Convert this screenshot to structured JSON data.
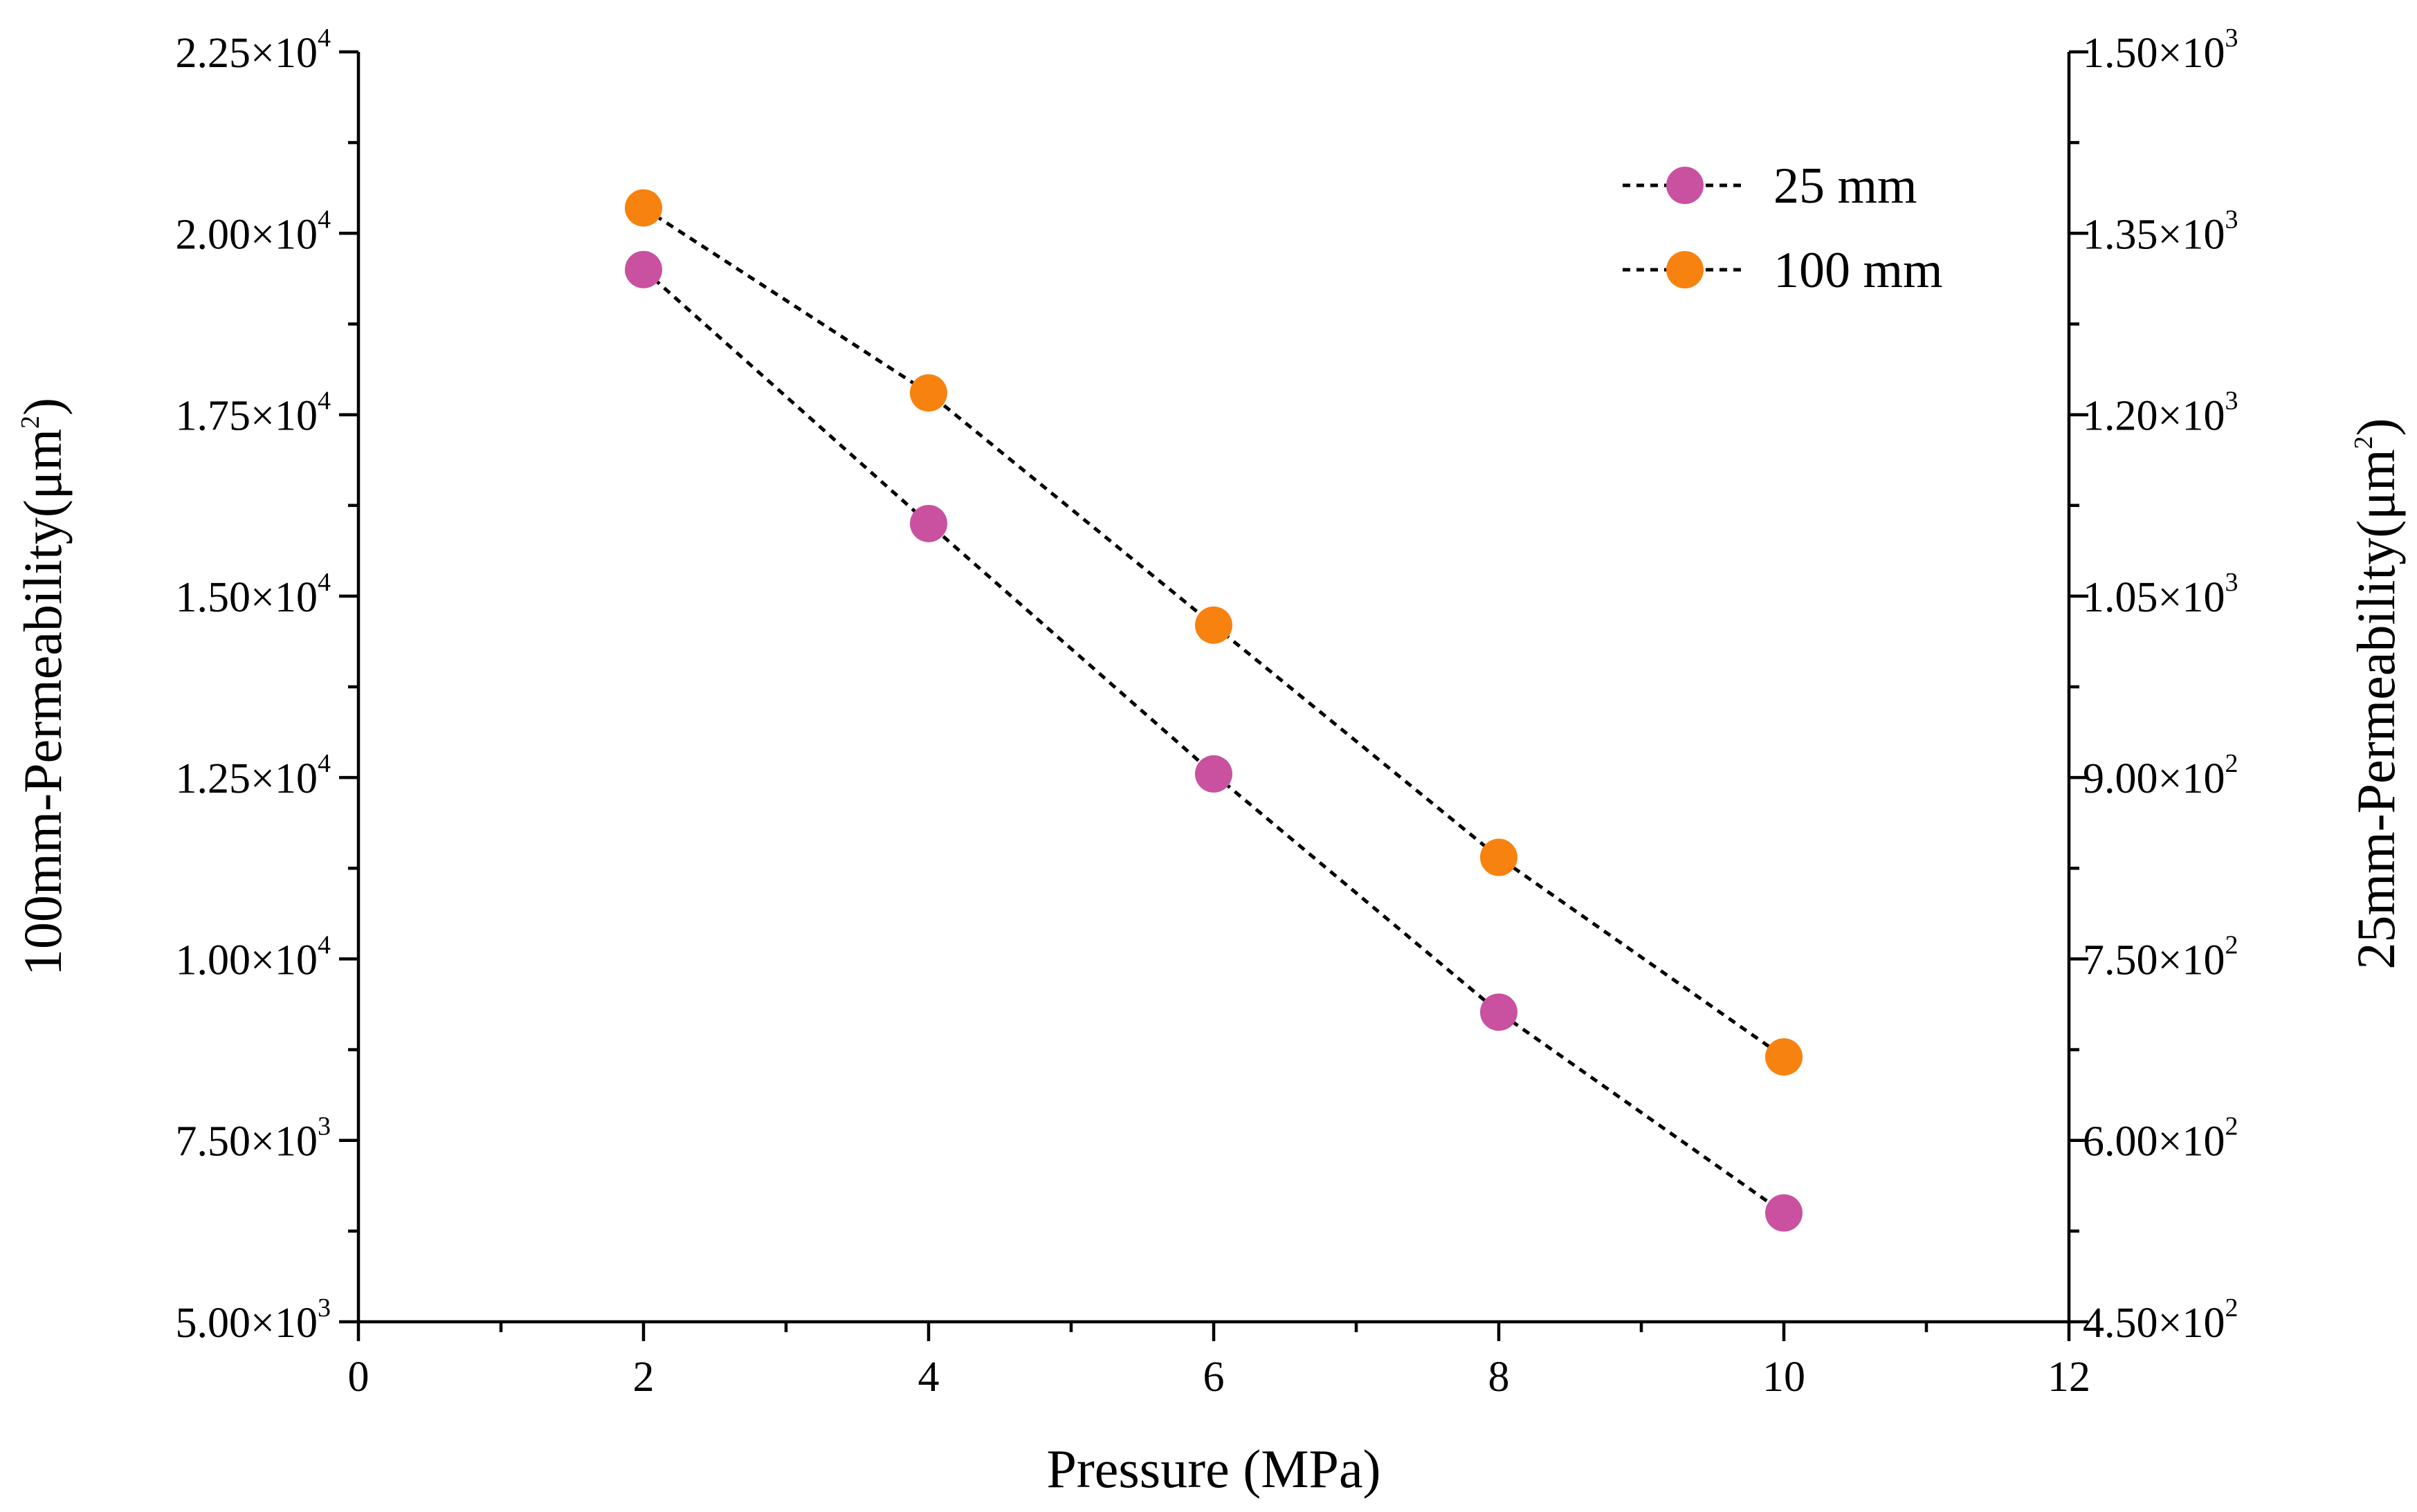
{
  "chart_data": {
    "type": "scatter",
    "xlabel": "Pressure (MPa)",
    "ylabel_left": "100mm-Permeability",
    "ylabel_right": "25mm-Permeability",
    "ylabel_unit_prefix": "(μm",
    "ylabel_unit_exp": "2",
    "ylabel_unit_suffix": ")",
    "xlim": [
      0,
      12
    ],
    "x_major_ticks": [
      0,
      2,
      4,
      6,
      8,
      10,
      12
    ],
    "x_minor_ticks": [
      1,
      3,
      5,
      7,
      9,
      11
    ],
    "ylim_left": [
      5000,
      22500
    ],
    "ylim_right": [
      450,
      1500
    ],
    "left_ticks": [
      {
        "value": 5000,
        "mantissa": "5.00",
        "times": "×10",
        "exp": "3"
      },
      {
        "value": 7500,
        "mantissa": "7.50",
        "times": "×10",
        "exp": "3"
      },
      {
        "value": 10000,
        "mantissa": "1.00",
        "times": "×10",
        "exp": "4"
      },
      {
        "value": 12500,
        "mantissa": "1.25",
        "times": "×10",
        "exp": "4"
      },
      {
        "value": 15000,
        "mantissa": "1.50",
        "times": "×10",
        "exp": "4"
      },
      {
        "value": 17500,
        "mantissa": "1.75",
        "times": "×10",
        "exp": "4"
      },
      {
        "value": 20000,
        "mantissa": "2.00",
        "times": "×10",
        "exp": "4"
      },
      {
        "value": 22500,
        "mantissa": "2.25",
        "times": "×10",
        "exp": "4"
      }
    ],
    "right_ticks": [
      {
        "value": 450,
        "mantissa": "4.50",
        "times": "×10",
        "exp": "2"
      },
      {
        "value": 600,
        "mantissa": "6.00",
        "times": "×10",
        "exp": "2"
      },
      {
        "value": 750,
        "mantissa": "7.50",
        "times": "×10",
        "exp": "2"
      },
      {
        "value": 900,
        "mantissa": "9.00",
        "times": "×10",
        "exp": "2"
      },
      {
        "value": 1050,
        "mantissa": "1.05",
        "times": "×10",
        "exp": "3"
      },
      {
        "value": 1200,
        "mantissa": "1.20",
        "times": "×10",
        "exp": "3"
      },
      {
        "value": 1350,
        "mantissa": "1.35",
        "times": "×10",
        "exp": "3"
      },
      {
        "value": 1500,
        "mantissa": "1.50",
        "times": "×10",
        "exp": "3"
      }
    ],
    "series": [
      {
        "name": "25 mm",
        "axis": "right",
        "color": "#C9519F",
        "x": [
          2,
          4,
          6,
          8,
          10
        ],
        "values": [
          1320,
          1110,
          903,
          706,
          540
        ]
      },
      {
        "name": "100 mm",
        "axis": "left",
        "color": "#F7820F",
        "x": [
          2,
          4,
          6,
          8,
          10
        ],
        "values": [
          20350,
          17800,
          14600,
          11400,
          8650
        ]
      }
    ],
    "legend_position": "top-right",
    "line_style": "dotted",
    "line_color": "#000000",
    "grid": false
  }
}
